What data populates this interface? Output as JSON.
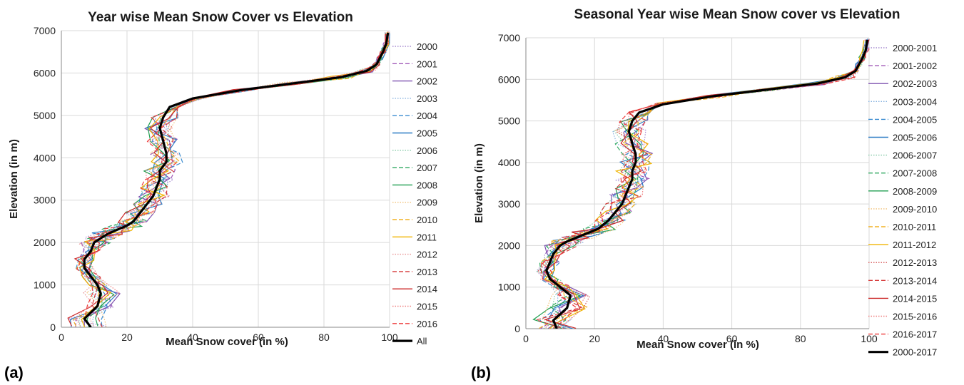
{
  "chart_data": [
    {
      "type": "line",
      "panel_label": "(a)",
      "title": "Year wise Mean Snow Cover vs Elevation",
      "xlabel": "Mean Snow cover (in %)",
      "ylabel": "Elevation (in m)",
      "xlim": [
        0,
        100
      ],
      "ylim": [
        0,
        7000
      ],
      "xticks": [
        0,
        20,
        40,
        60,
        80,
        100
      ],
      "yticks": [
        0,
        1000,
        2000,
        3000,
        4000,
        5000,
        6000,
        7000
      ],
      "grid": true,
      "legend": "right",
      "series": [
        {
          "name": "2000",
          "color": "#a78bd0",
          "dash": "dot"
        },
        {
          "name": "2001",
          "color": "#a05ab8",
          "dash": "dash"
        },
        {
          "name": "2002",
          "color": "#7f52b0",
          "dash": "solid"
        },
        {
          "name": "2003",
          "color": "#8ab4e0",
          "dash": "dot"
        },
        {
          "name": "2004",
          "color": "#3b8cd0",
          "dash": "dash"
        },
        {
          "name": "2005",
          "color": "#2a7bc4",
          "dash": "solid"
        },
        {
          "name": "2006",
          "color": "#86c9a8",
          "dash": "dot"
        },
        {
          "name": "2007",
          "color": "#2fa860",
          "dash": "dash"
        },
        {
          "name": "2008",
          "color": "#1f9e50",
          "dash": "solid"
        },
        {
          "name": "2009",
          "color": "#f2c27a",
          "dash": "dot"
        },
        {
          "name": "2010",
          "color": "#f2b224",
          "dash": "dash"
        },
        {
          "name": "2011",
          "color": "#f0b400",
          "dash": "solid"
        },
        {
          "name": "2012",
          "color": "#e89494",
          "dash": "dot"
        },
        {
          "name": "2013",
          "color": "#d63a3a",
          "dash": "dash"
        },
        {
          "name": "2014",
          "color": "#cc2a2a",
          "dash": "solid"
        },
        {
          "name": "2015",
          "color": "#ef8080",
          "dash": "dot"
        },
        {
          "name": "2016",
          "color": "#ee3b3b",
          "dash": "dash"
        },
        {
          "name": "All",
          "color": "#000000",
          "dash": "solid",
          "bold": true
        }
      ],
      "mean_curve": {
        "x": [
          9,
          7,
          11,
          12,
          11,
          9,
          7,
          7,
          9,
          10,
          12,
          14,
          17,
          20,
          22,
          24,
          26,
          28,
          29,
          30,
          30,
          32,
          32,
          31,
          30,
          31,
          33,
          40,
          55,
          70,
          85,
          93,
          96,
          97,
          98,
          99,
          99.5
        ],
        "y": [
          0,
          200,
          500,
          800,
          1000,
          1200,
          1400,
          1600,
          1800,
          2000,
          2100,
          2200,
          2300,
          2400,
          2500,
          2700,
          2900,
          3100,
          3300,
          3500,
          3700,
          3900,
          4100,
          4400,
          4700,
          4950,
          5200,
          5400,
          5600,
          5750,
          5900,
          6050,
          6200,
          6350,
          6500,
          6700,
          6950
        ]
      }
    },
    {
      "type": "line",
      "panel_label": "(b)",
      "title": "Seasonal Year wise Mean Snow cover vs Elevation",
      "xlabel": "Mean Snow cover (in %)",
      "ylabel": "Elevation (in m)",
      "xlim": [
        0,
        100
      ],
      "ylim": [
        0,
        7000
      ],
      "xticks": [
        0,
        20,
        40,
        60,
        80,
        100
      ],
      "yticks": [
        0,
        1000,
        2000,
        3000,
        4000,
        5000,
        6000,
        7000
      ],
      "grid": true,
      "legend": "right",
      "series": [
        {
          "name": "2000-2001",
          "color": "#a78bd0",
          "dash": "dot"
        },
        {
          "name": "2001-2002",
          "color": "#a05ab8",
          "dash": "dash"
        },
        {
          "name": "2002-2003",
          "color": "#7f52b0",
          "dash": "solid"
        },
        {
          "name": "2003-2004",
          "color": "#8ab4e0",
          "dash": "dot"
        },
        {
          "name": "2004-2005",
          "color": "#3b8cd0",
          "dash": "dash"
        },
        {
          "name": "2005-2006",
          "color": "#2a7bc4",
          "dash": "solid"
        },
        {
          "name": "2006-2007",
          "color": "#86c9a8",
          "dash": "dot"
        },
        {
          "name": "2007-2008",
          "color": "#2fa860",
          "dash": "dash"
        },
        {
          "name": "2008-2009",
          "color": "#1f9e50",
          "dash": "solid"
        },
        {
          "name": "2009-2010",
          "color": "#f2c27a",
          "dash": "dot"
        },
        {
          "name": "2010-2011",
          "color": "#f2b224",
          "dash": "dash"
        },
        {
          "name": "2011-2012",
          "color": "#f0b400",
          "dash": "solid"
        },
        {
          "name": "2012-2013",
          "color": "#d65a5a",
          "dash": "dot"
        },
        {
          "name": "2013-2014",
          "color": "#d63a3a",
          "dash": "dash"
        },
        {
          "name": "2014-2015",
          "color": "#cc2a2a",
          "dash": "solid"
        },
        {
          "name": "2015-2016",
          "color": "#ef8080",
          "dash": "dot"
        },
        {
          "name": "2016-2017",
          "color": "#ee3b3b",
          "dash": "dash"
        },
        {
          "name": "2000-2017",
          "color": "#000000",
          "dash": "solid",
          "bold": true
        }
      ],
      "mean_curve": {
        "x": [
          9,
          8,
          12,
          13,
          10,
          7,
          6,
          7,
          8,
          10,
          12,
          15,
          18,
          21,
          24,
          26,
          28,
          29,
          30,
          31,
          31,
          32,
          32,
          31,
          30,
          31,
          33,
          40,
          55,
          70,
          85,
          93,
          96,
          97,
          98,
          99,
          99.5
        ],
        "y": [
          0,
          200,
          500,
          800,
          1000,
          1200,
          1400,
          1600,
          1800,
          2000,
          2100,
          2200,
          2300,
          2400,
          2600,
          2800,
          3000,
          3200,
          3400,
          3600,
          3800,
          4000,
          4200,
          4450,
          4750,
          5000,
          5200,
          5400,
          5600,
          5750,
          5900,
          6050,
          6200,
          6350,
          6500,
          6700,
          6950
        ]
      }
    }
  ]
}
